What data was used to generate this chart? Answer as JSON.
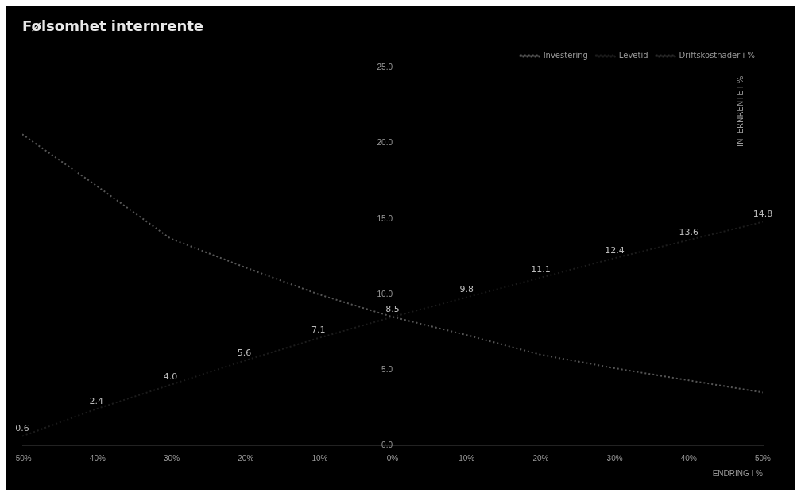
{
  "chart_data": {
    "type": "line",
    "title": "Følsomhet internrente",
    "xlabel": "ENDRING I %",
    "ylabel": "INTERNRENTE I %",
    "x": [
      -50,
      -40,
      -30,
      -20,
      -10,
      0,
      10,
      20,
      30,
      40,
      50
    ],
    "xlim": [
      -50,
      50
    ],
    "xticks": [
      {
        "value": -50,
        "label": "-50%"
      },
      {
        "value": -40,
        "label": "-40%"
      },
      {
        "value": -30,
        "label": "-30%"
      },
      {
        "value": -20,
        "label": "-20%"
      },
      {
        "value": -10,
        "label": "-10%"
      },
      {
        "value": 0,
        "label": "0%"
      },
      {
        "value": 10,
        "label": "10%"
      },
      {
        "value": 20,
        "label": "20%"
      },
      {
        "value": 30,
        "label": "30%"
      },
      {
        "value": 40,
        "label": "40%"
      },
      {
        "value": 50,
        "label": "50%"
      }
    ],
    "ylim": [
      0,
      25
    ],
    "yticks": [
      {
        "value": 0,
        "label": "0.0"
      },
      {
        "value": 5,
        "label": "5.0"
      },
      {
        "value": 10,
        "label": "10.0"
      },
      {
        "value": 15,
        "label": "15.0"
      },
      {
        "value": 20,
        "label": "20.0"
      },
      {
        "value": 25,
        "label": "25.0"
      }
    ],
    "series": [
      {
        "name": "Investering",
        "color": "#555555",
        "values": [
          20.6,
          17.2,
          13.7,
          11.8,
          10.0,
          8.5,
          7.3,
          6.0,
          5.1,
          4.3,
          3.5
        ]
      },
      {
        "name": "Levetid",
        "color": "#1c1c1c",
        "values": [
          0.6,
          2.4,
          4.0,
          5.6,
          7.1,
          8.5,
          9.8,
          11.1,
          12.4,
          13.6,
          14.8
        ],
        "value_labels": [
          "0.6",
          "2.4",
          "4.0",
          "5.6",
          "7.1",
          "8.5",
          "9.8",
          "11.1",
          "12.4",
          "13.6",
          "14.8"
        ]
      },
      {
        "name": "Driftskostnader i %",
        "color": "#2a2a2a",
        "values": [
          null,
          null,
          null,
          null,
          null,
          null,
          null,
          null,
          null,
          null,
          null
        ]
      }
    ],
    "legend": "top right",
    "grid": false,
    "marker": "none",
    "line_style": "dotted"
  }
}
